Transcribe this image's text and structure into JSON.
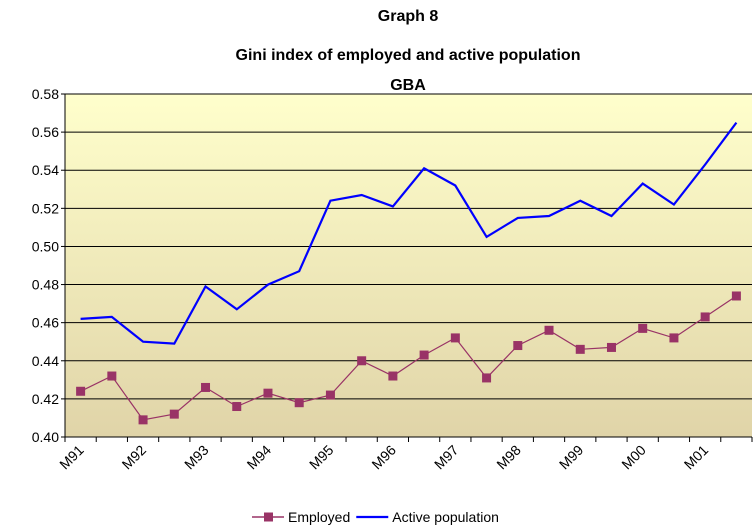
{
  "chart_data": {
    "type": "line",
    "title": [
      "Graph 8",
      "Gini index of employed and active population",
      "GBA"
    ],
    "categories": [
      "M91",
      null,
      "M92",
      null,
      "M93",
      null,
      "M94",
      null,
      "M95",
      null,
      "M96",
      null,
      "M97",
      null,
      "M98",
      null,
      "M99",
      null,
      "M00",
      null,
      "M01",
      null
    ],
    "series": [
      {
        "name": "Employed",
        "color": "#993366",
        "marker": "square",
        "values": [
          0.424,
          0.432,
          0.409,
          0.412,
          0.426,
          0.416,
          0.423,
          0.418,
          0.422,
          0.44,
          0.432,
          0.443,
          0.452,
          0.431,
          0.448,
          0.456,
          0.446,
          0.447,
          0.457,
          0.452,
          0.463,
          0.474
        ]
      },
      {
        "name": "Active population",
        "color": "#0000ff",
        "marker": "none",
        "values": [
          0.462,
          0.463,
          0.45,
          0.449,
          0.479,
          0.467,
          0.48,
          0.487,
          0.524,
          0.527,
          0.521,
          0.541,
          0.532,
          0.505,
          0.515,
          0.516,
          0.524,
          0.516,
          0.533,
          0.522,
          0.543,
          0.565
        ]
      }
    ],
    "ylim": [
      0.4,
      0.58
    ],
    "yticks": [
      {
        "value": 0.4,
        "label": "0.40"
      },
      {
        "value": 0.42,
        "label": "0.42"
      },
      {
        "value": 0.44,
        "label": "0.44"
      },
      {
        "value": 0.46,
        "label": "0.46"
      },
      {
        "value": 0.48,
        "label": "0.48"
      },
      {
        "value": 0.5,
        "label": "0.50"
      },
      {
        "value": 0.52,
        "label": "0.52"
      },
      {
        "value": 0.54,
        "label": "0.54"
      },
      {
        "value": 0.56,
        "label": "0.56"
      },
      {
        "value": 0.58,
        "label": "0.58"
      }
    ],
    "grid": true,
    "legend": "bottom"
  }
}
